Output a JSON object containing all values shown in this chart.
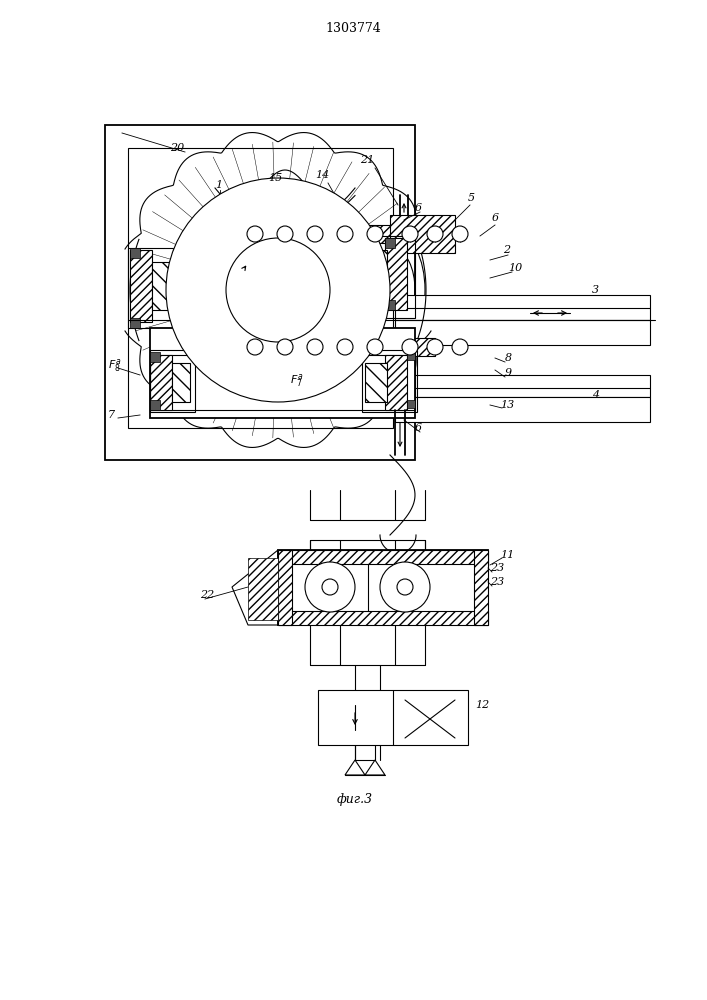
{
  "title": "1303774",
  "fig_caption": "фиг.3",
  "bg_color": "#ffffff"
}
